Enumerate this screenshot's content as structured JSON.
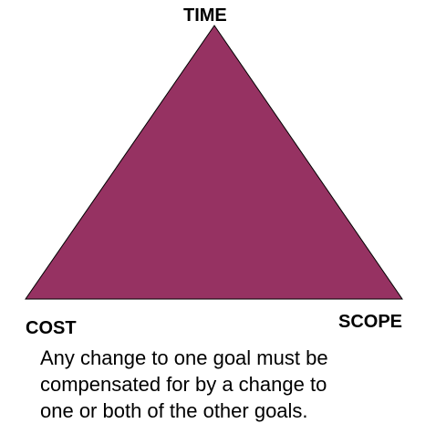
{
  "diagram": {
    "triangle_fill": "#963262",
    "triangle_stroke": "#000000",
    "vertices": {
      "top": "TIME",
      "bottom_left": "COST",
      "bottom_right": "SCOPE"
    },
    "caption_lines": [
      "Any change to one goal must be",
      "compensated for by a change to",
      "one or both of the other goals."
    ]
  }
}
